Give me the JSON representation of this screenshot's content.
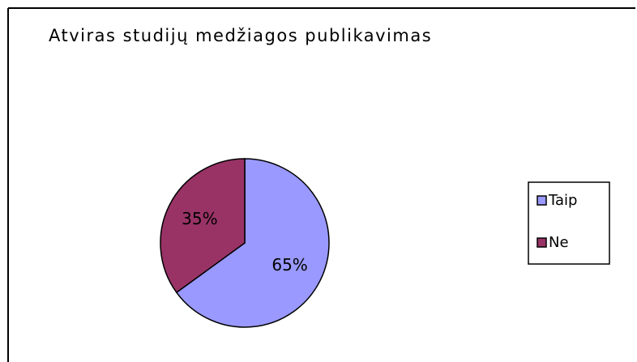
{
  "chart_data": {
    "type": "pie",
    "title": "Atviras studijų medžiagos publikavimas",
    "categories": [
      "Taip",
      "Ne"
    ],
    "values": [
      65,
      35
    ],
    "value_labels": [
      "65%",
      "35%"
    ],
    "colors": [
      "#9999ff",
      "#993366"
    ],
    "legend": "right"
  }
}
